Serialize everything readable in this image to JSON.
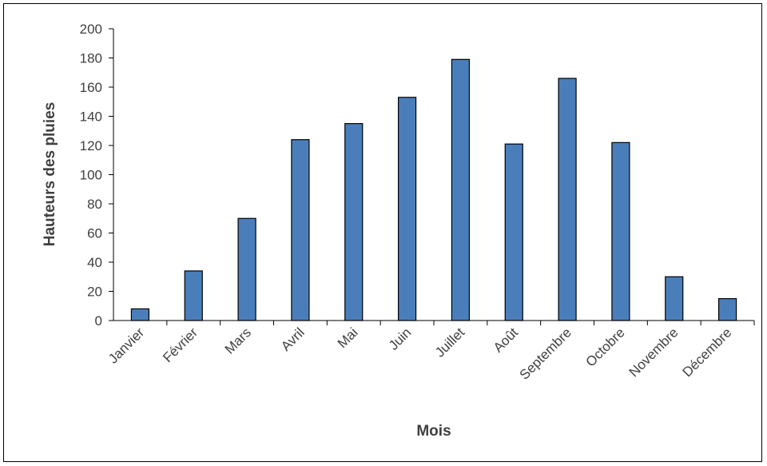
{
  "chart_data": {
    "type": "bar",
    "title": "",
    "xlabel": "Mois",
    "ylabel": "Hauteurs des pluies",
    "categories": [
      "Janvier",
      "Février",
      "Mars",
      "Avril",
      "Mai",
      "Juin",
      "Juillet",
      "Août",
      "Septembre",
      "Octobre",
      "Novembre",
      "Décembre"
    ],
    "values": [
      8,
      34,
      70,
      124,
      135,
      153,
      179,
      121,
      166,
      122,
      30,
      15
    ],
    "ylim": [
      0,
      200
    ],
    "yticks": [
      "0",
      "20",
      "40",
      "60",
      "80",
      "100",
      "120",
      "140",
      "160",
      "180",
      "200"
    ],
    "grid": false,
    "legend": "none",
    "bar_color": "#4a7ebb",
    "bar_edge_color": "#000000"
  }
}
